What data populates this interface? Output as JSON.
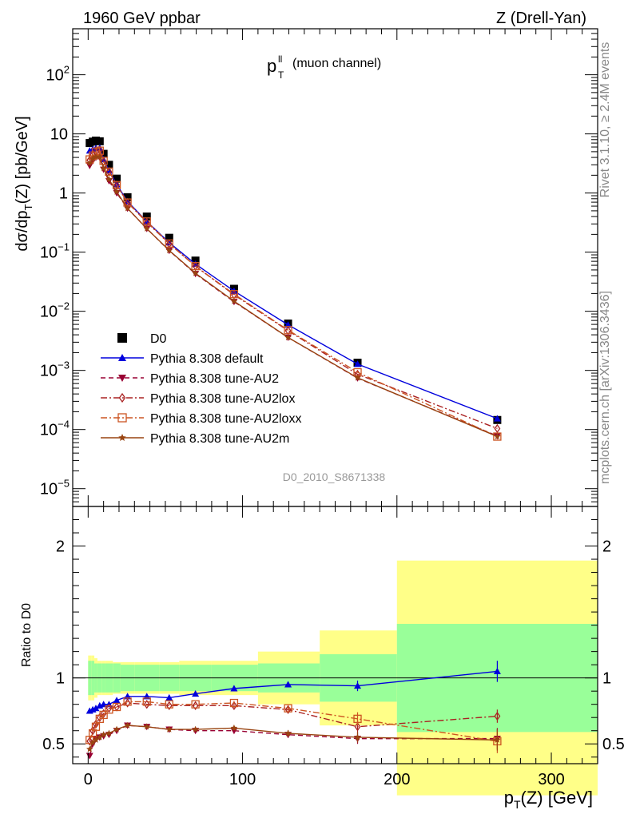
{
  "header": {
    "left": "1960 GeV ppbar",
    "right": "Z (Drell-Yan)"
  },
  "side_text": {
    "top": "Rivet 3.1.10, ≥ 2.4M events",
    "bottom": "mcplots.cern.ch [arXiv:1306.3436]"
  },
  "watermark": "D0_2010_S8671338",
  "plot_title": {
    "main": "p",
    "sup": "ll",
    "sub": "T",
    "suffix": "(muon channel)"
  },
  "main_ylabel": {
    "a": "dσ/dp",
    "sub": "T",
    "b": "(Z) [pb/GeV]"
  },
  "ratio_ylabel": "Ratio to D0",
  "xlabel": {
    "a": "p",
    "sub": "T",
    "b": "(Z) [GeV]"
  },
  "chart_data": [
    {
      "type": "scatter",
      "panel": "main",
      "yscale": "log",
      "xlim": [
        -10,
        330
      ],
      "ylim": [
        5e-06,
        600
      ],
      "x_ticks": [
        0,
        100,
        200,
        300
      ],
      "y_ticks": [
        {
          "v": 1e-05,
          "b": "10",
          "e": "−5"
        },
        {
          "v": 0.0001,
          "b": "10",
          "e": "−4"
        },
        {
          "v": 0.001,
          "b": "10",
          "e": "−3"
        },
        {
          "v": 0.01,
          "b": "10",
          "e": "−2"
        },
        {
          "v": 0.1,
          "b": "10",
          "e": "−1"
        },
        {
          "v": 1,
          "b": "1",
          "e": ""
        },
        {
          "v": 10,
          "b": "10",
          "e": ""
        },
        {
          "v": 100,
          "b": "10",
          "e": "2"
        }
      ],
      "legend_position": "lower-left",
      "x": [
        1,
        3,
        5,
        7.5,
        10,
        13.5,
        18.5,
        25.5,
        38,
        52.5,
        69.5,
        94.5,
        129.5,
        174.5,
        265
      ],
      "series": [
        {
          "name": "D0",
          "color": "#000000",
          "marker": "square",
          "line": "none",
          "values": [
            7.0,
            7.4,
            7.7,
            7.5,
            4.6,
            3.0,
            1.75,
            0.85,
            0.4,
            0.175,
            0.072,
            0.024,
            0.0062,
            0.00135,
            0.000145
          ]
        },
        {
          "name": "Pythia 8.308 default",
          "color": "#0000dd",
          "marker": "triangle-up",
          "line": "solid",
          "values": [
            5.2,
            5.5,
            5.7,
            5.8,
            3.7,
            2.4,
            1.4,
            0.72,
            0.33,
            0.145,
            0.063,
            0.022,
            0.0059,
            0.00128,
            0.000153
          ]
        },
        {
          "name": "Pythia 8.308 tune-AU2",
          "color": "#990033",
          "marker": "triangle-down",
          "line": "dashed",
          "values": [
            2.9,
            3.5,
            4.0,
            4.0,
            2.5,
            1.6,
            1.0,
            0.55,
            0.25,
            0.106,
            0.043,
            0.0145,
            0.0036,
            0.00074,
            7.8e-05
          ]
        },
        {
          "name": "Pythia 8.308 tune-AU2lox",
          "color": "#aa2222",
          "marker": "diamond-open",
          "line": "dashdot",
          "values": [
            3.6,
            4.4,
            5.0,
            5.3,
            3.4,
            2.3,
            1.37,
            0.69,
            0.32,
            0.139,
            0.058,
            0.019,
            0.0047,
            0.00086,
            0.000104
          ]
        },
        {
          "name": "Pythia 8.308 tune-AU2loxx",
          "color": "#cc5522",
          "marker": "square-open",
          "line": "dashdot",
          "values": [
            3.7,
            4.3,
            5.0,
            5.2,
            3.5,
            2.3,
            1.36,
            0.69,
            0.33,
            0.14,
            0.058,
            0.0195,
            0.0048,
            0.00093,
            7.6e-05
          ]
        },
        {
          "name": "Pythia 8.308 tune-AU2m",
          "color": "#994411",
          "marker": "star",
          "line": "solid",
          "values": [
            3.2,
            3.8,
            4.1,
            4.1,
            2.6,
            1.7,
            1.05,
            0.55,
            0.25,
            0.107,
            0.044,
            0.0148,
            0.0036,
            0.00075,
            7.6e-05
          ]
        }
      ]
    },
    {
      "type": "scatter",
      "panel": "ratio",
      "xlim": [
        -10,
        330
      ],
      "ylim": [
        0.35,
        2.3
      ],
      "y_ticks": [
        0.5,
        1,
        2
      ],
      "reference_line": 1,
      "band_edges": [
        0,
        2,
        4,
        6,
        9,
        11,
        16,
        21,
        30,
        46,
        59,
        80,
        110,
        150,
        200,
        330
      ],
      "band_inner": [
        0.13,
        0.13,
        0.11,
        0.11,
        0.11,
        0.11,
        0.11,
        0.1,
        0.1,
        0.1,
        0.1,
        0.1,
        0.11,
        0.18,
        0.41,
        0.41
      ],
      "band_outer": [
        0.17,
        0.17,
        0.15,
        0.13,
        0.13,
        0.13,
        0.12,
        0.12,
        0.12,
        0.12,
        0.13,
        0.13,
        0.2,
        0.36,
        0.89,
        0.89
      ],
      "x": [
        1,
        3,
        5,
        7.5,
        10,
        13.5,
        18.5,
        25.5,
        38,
        52.5,
        69.5,
        94.5,
        129.5,
        174.5,
        265
      ],
      "series": [
        {
          "name": "Pythia 8.308 default",
          "color": "#0000dd",
          "marker": "triangle-up",
          "line": "solid",
          "values": [
            0.75,
            0.76,
            0.77,
            0.79,
            0.8,
            0.8,
            0.83,
            0.86,
            0.86,
            0.85,
            0.88,
            0.92,
            0.95,
            0.94,
            1.05
          ],
          "err": [
            0,
            0,
            0,
            0,
            0,
            0,
            0,
            0,
            0,
            0,
            0,
            0,
            0.015,
            0.04,
            0.08
          ]
        },
        {
          "name": "Pythia 8.308 tune-AU2",
          "color": "#990033",
          "marker": "triangle-down",
          "line": "dashed",
          "values": [
            0.41,
            0.5,
            0.54,
            0.55,
            0.56,
            0.57,
            0.6,
            0.64,
            0.63,
            0.61,
            0.6,
            0.6,
            0.57,
            0.54,
            0.54
          ],
          "err": [
            0,
            0,
            0,
            0,
            0,
            0,
            0,
            0,
            0,
            0,
            0,
            0.015,
            0.025,
            0.04,
            0.08
          ]
        },
        {
          "name": "Pythia 8.308 tune-AU2lox",
          "color": "#aa2222",
          "marker": "diamond-open",
          "line": "dashdot",
          "values": [
            0.52,
            0.6,
            0.65,
            0.7,
            0.73,
            0.77,
            0.78,
            0.81,
            0.8,
            0.79,
            0.79,
            0.79,
            0.76,
            0.63,
            0.71
          ],
          "err": [
            0,
            0,
            0,
            0,
            0,
            0,
            0,
            0,
            0,
            0,
            0,
            0.015,
            0.025,
            0.05,
            0.05
          ]
        },
        {
          "name": "Pythia 8.308 tune-AU2loxx",
          "color": "#cc5522",
          "marker": "square-open",
          "line": "dashdot",
          "values": [
            0.53,
            0.58,
            0.63,
            0.69,
            0.72,
            0.76,
            0.78,
            0.82,
            0.82,
            0.8,
            0.8,
            0.81,
            0.77,
            0.69,
            0.52
          ],
          "err": [
            0,
            0,
            0,
            0,
            0,
            0,
            0,
            0,
            0,
            0,
            0,
            0.015,
            0.025,
            0.05,
            0.09
          ]
        },
        {
          "name": "Pythia 8.308 tune-AU2m",
          "color": "#994411",
          "marker": "star",
          "line": "solid",
          "values": [
            0.46,
            0.51,
            0.53,
            0.55,
            0.57,
            0.58,
            0.61,
            0.64,
            0.63,
            0.61,
            0.61,
            0.62,
            0.58,
            0.55,
            0.53
          ],
          "err": [
            0,
            0,
            0,
            0,
            0,
            0,
            0,
            0,
            0,
            0,
            0,
            0.015,
            0.025,
            0.04,
            0.08
          ]
        }
      ]
    }
  ],
  "colors": {
    "band_inner": "#99ff99",
    "band_outer": "#ffff88"
  }
}
